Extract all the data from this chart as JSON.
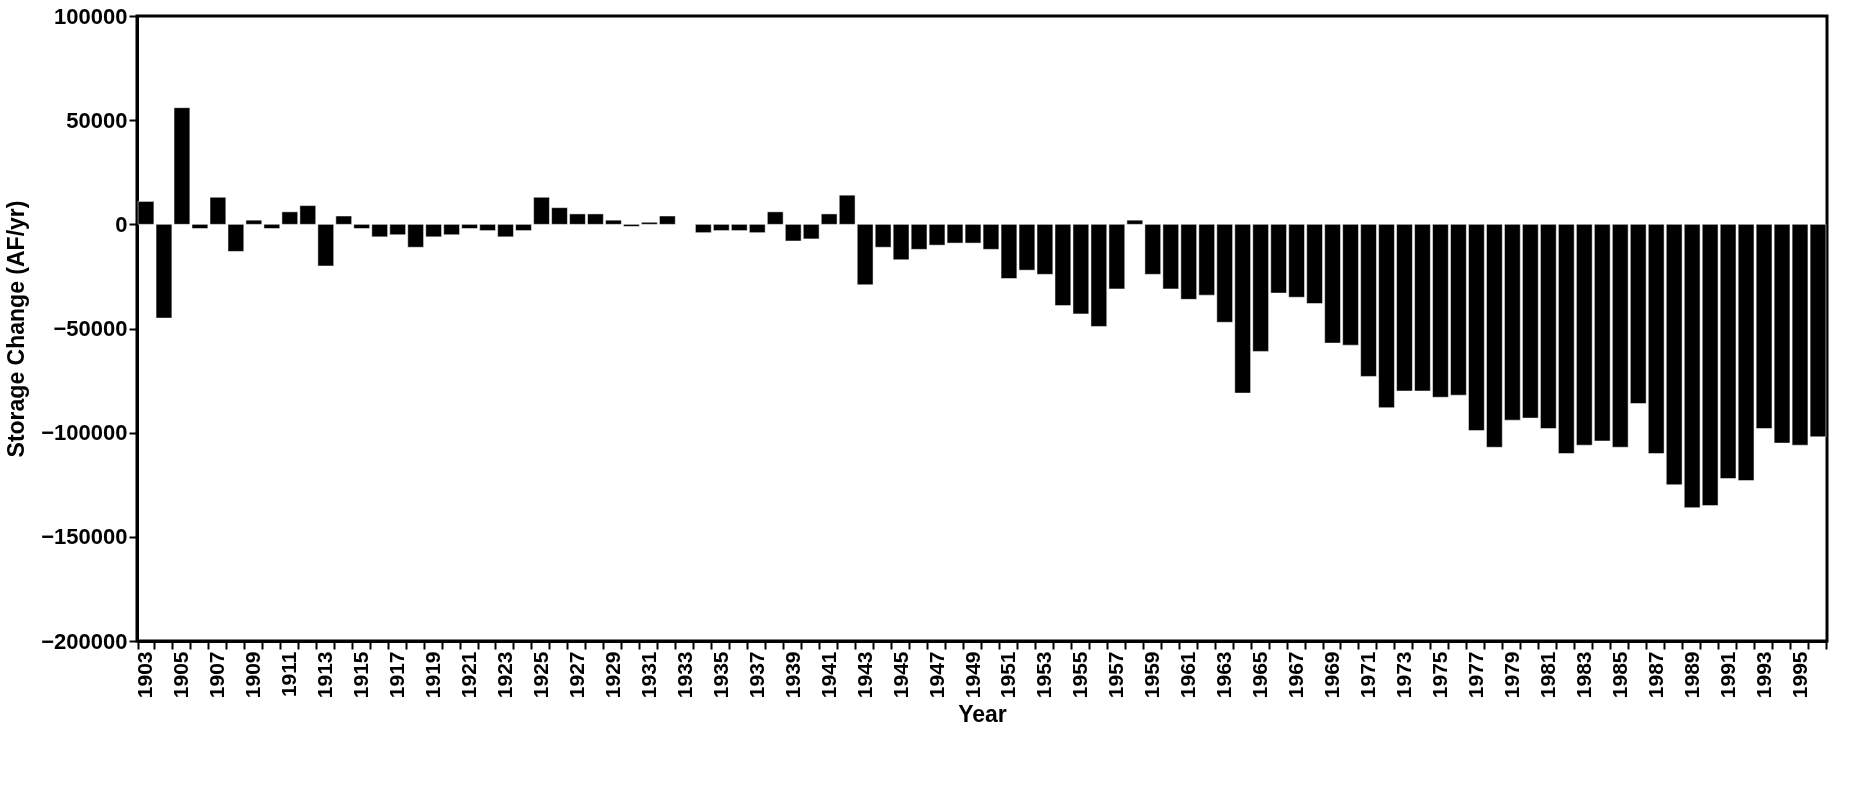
{
  "chart_data": {
    "type": "bar",
    "xlabel": "Year",
    "ylabel": "Storage Change (AF/yr)",
    "categories": [
      "1903",
      null,
      "1905",
      null,
      "1907",
      null,
      "1909",
      null,
      "1911",
      null,
      "1913",
      null,
      "1915",
      null,
      "1917",
      null,
      "1919",
      null,
      "1921",
      null,
      "1923",
      null,
      "1925",
      null,
      "1927",
      null,
      "1929",
      null,
      "1931",
      null,
      "1933",
      null,
      "1935",
      null,
      "1937",
      null,
      "1939",
      null,
      "1941",
      null,
      "1943",
      null,
      "1945",
      null,
      "1947",
      null,
      "1949",
      null,
      "1951",
      null,
      "1953",
      null,
      "1955",
      null,
      "1957",
      null,
      "1959",
      null,
      "1961",
      null,
      "1963",
      null,
      "1965",
      null,
      "1967",
      null,
      "1969",
      null,
      "1971",
      null,
      "1973",
      null,
      "1975",
      null,
      "1977",
      null,
      "1979",
      null,
      "1981",
      null,
      "1983",
      null,
      "1985",
      null,
      "1987",
      null,
      "1989",
      null,
      "1991",
      null,
      "1993",
      null,
      "1995",
      null
    ],
    "values": [
      11000,
      -45000,
      56000,
      -2000,
      13000,
      -13000,
      2000,
      -2000,
      6000,
      9000,
      -20000,
      4000,
      -2000,
      -6000,
      -5000,
      -11000,
      -6000,
      -5000,
      -2000,
      -3000,
      -6000,
      -3000,
      13000,
      8000,
      5000,
      5000,
      2000,
      -1000,
      1000,
      4000,
      null,
      -4000,
      -3000,
      -3000,
      -4000,
      6000,
      -8000,
      -7000,
      5000,
      14000,
      -29000,
      -11000,
      -17000,
      -12000,
      -10000,
      -9000,
      -9000,
      -12000,
      -26000,
      -22000,
      -24000,
      -39000,
      -43000,
      -49000,
      -31000,
      2000,
      -24000,
      -31000,
      -36000,
      -34000,
      -47000,
      -81000,
      -61000,
      -33000,
      -35000,
      -38000,
      -57000,
      -58000,
      -73000,
      -88000,
      -80000,
      -80000,
      -83000,
      -82000,
      -99000,
      -107000,
      -94000,
      -93000,
      -98000,
      -110000,
      -106000,
      -104000,
      -107000,
      -86000,
      -110000,
      -125000,
      -136000,
      -135000,
      -122000,
      -123000,
      -98000,
      -105000,
      -106000,
      -102000
    ],
    "color": "#000000",
    "ylim": [
      -200000,
      100000
    ],
    "yticks": [
      -200000,
      -150000,
      -100000,
      -50000,
      0,
      50000,
      100000
    ],
    "grid": false
  }
}
